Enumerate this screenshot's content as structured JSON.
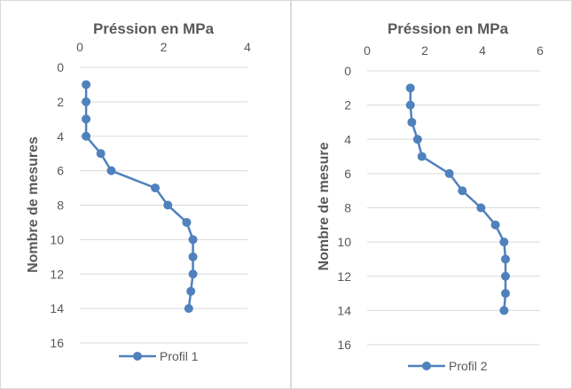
{
  "chart_data": [
    {
      "type": "line",
      "title": "Préssion en MPa",
      "ylabel": "Nombre de mesures",
      "xlim": [
        0,
        4
      ],
      "ylim": [
        0,
        16
      ],
      "x_ticks": [
        0,
        2,
        4
      ],
      "y_ticks": [
        0,
        2,
        4,
        6,
        8,
        10,
        12,
        14,
        16
      ],
      "y_inverted": true,
      "x_axis_position": "top",
      "grid": "horizontal",
      "legend": "bottom",
      "series": [
        {
          "name": "Profil 1",
          "color": "#4f81bd",
          "x": [
            0.15,
            0.15,
            0.15,
            0.15,
            0.5,
            0.75,
            1.8,
            2.1,
            2.55,
            2.7,
            2.7,
            2.7,
            2.65,
            2.6
          ],
          "y": [
            1,
            2,
            3,
            4,
            5,
            6,
            7,
            8,
            9,
            10,
            11,
            12,
            13,
            14
          ]
        }
      ]
    },
    {
      "type": "line",
      "title": "Préssion en MPa",
      "ylabel": "Nombre de mesure",
      "xlim": [
        0,
        6
      ],
      "ylim": [
        0,
        16
      ],
      "x_ticks": [
        0,
        2,
        4,
        6
      ],
      "y_ticks": [
        0,
        2,
        4,
        6,
        8,
        10,
        12,
        14,
        16
      ],
      "y_inverted": true,
      "x_axis_position": "top",
      "grid": "horizontal",
      "legend": "bottom",
      "series": [
        {
          "name": "Profil 2",
          "color": "#4f81bd",
          "x": [
            1.5,
            1.5,
            1.55,
            1.75,
            1.9,
            2.85,
            3.3,
            3.95,
            4.45,
            4.75,
            4.8,
            4.8,
            4.8,
            4.75
          ],
          "y": [
            1,
            2,
            3,
            4,
            5,
            6,
            7,
            8,
            9,
            10,
            11,
            12,
            13,
            14
          ]
        }
      ]
    }
  ]
}
